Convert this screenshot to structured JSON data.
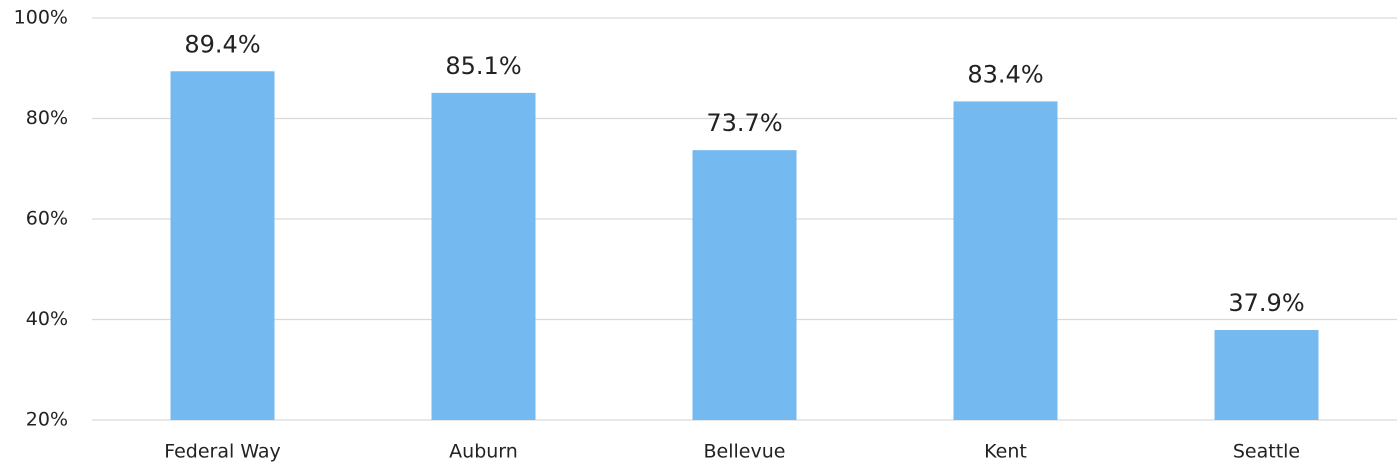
{
  "chart_data": {
    "type": "bar",
    "categories": [
      "Federal Way",
      "Auburn",
      "Bellevue",
      "Kent",
      "Seattle"
    ],
    "values": [
      89.4,
      85.1,
      73.7,
      83.4,
      37.9
    ],
    "value_labels": [
      "89.4%",
      "85.1%",
      "73.7%",
      "83.4%",
      "37.9%"
    ],
    "color": "#74b9ef",
    "ylim": [
      20,
      100
    ],
    "yticks": [
      {
        "value": 20,
        "label": "20%"
      },
      {
        "value": 40,
        "label": "40%"
      },
      {
        "value": 60,
        "label": "60%"
      },
      {
        "value": 80,
        "label": "80%"
      },
      {
        "value": 100,
        "label": "100%"
      }
    ],
    "grid": true
  }
}
